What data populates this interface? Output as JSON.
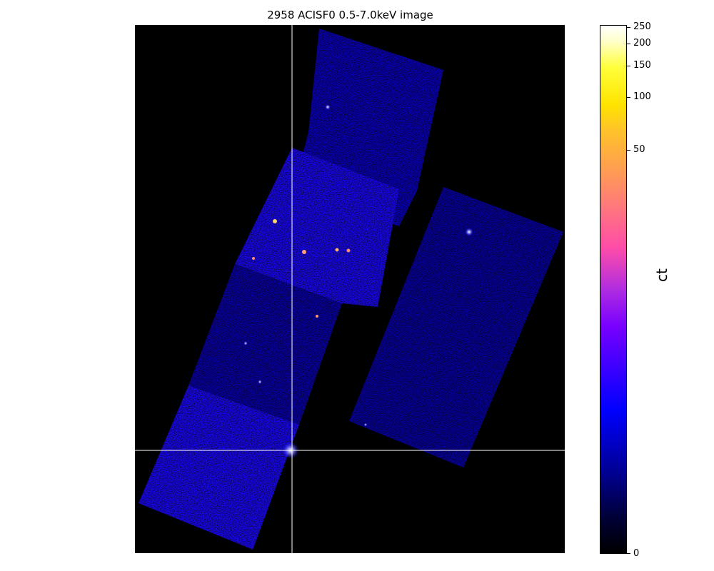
{
  "title": "2958 ACISF0 0.5-7.0keV image",
  "colorbar": {
    "label": "ct",
    "ticks": [
      "250",
      "200",
      "150",
      "100",
      "50",
      "0"
    ],
    "colormap": [
      "#000000",
      "#0000ff",
      "#7800ff",
      "#ff4da8",
      "#ff9f50",
      "#ffff00",
      "#ffffff"
    ]
  },
  "image": {
    "background": "#000000",
    "field_color": "#0a00d8",
    "crosshair_color": "#ffffff"
  }
}
